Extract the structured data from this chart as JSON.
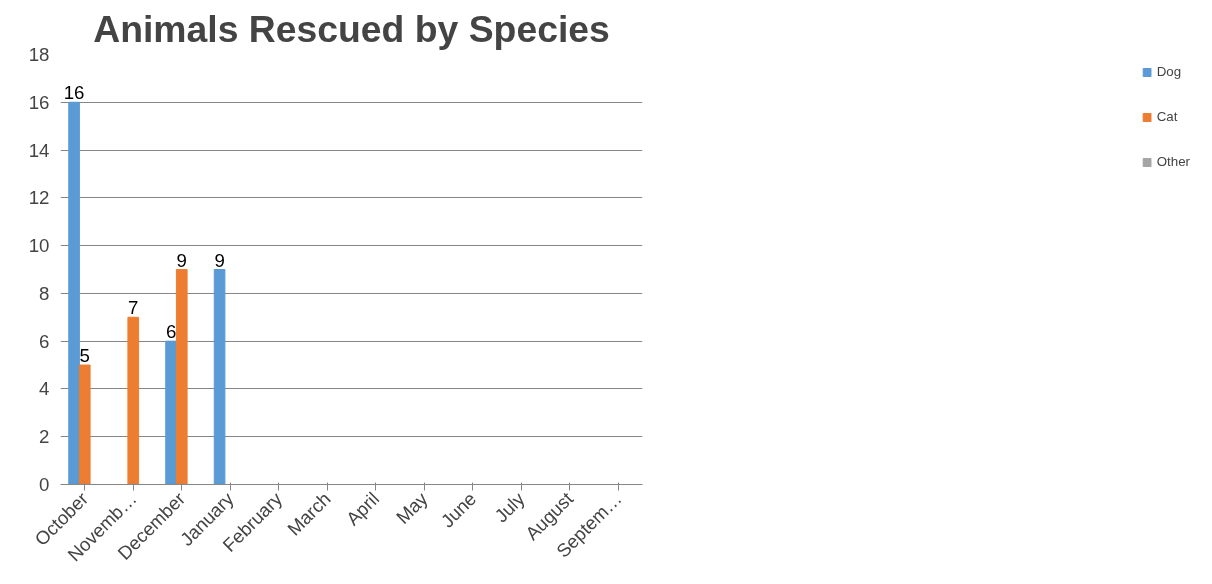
{
  "chart_data": {
    "type": "bar",
    "title": "Animals Rescued by Species",
    "categories": [
      "October",
      "Novemb…",
      "December",
      "January",
      "February",
      "March",
      "April",
      "May",
      "June",
      "July",
      "August",
      "Septem…"
    ],
    "series": [
      {
        "name": "Dog",
        "color": "#5b9bd5",
        "values": [
          16,
          null,
          6,
          9,
          null,
          null,
          null,
          null,
          null,
          null,
          null,
          null
        ]
      },
      {
        "name": "Cat",
        "color": "#ed7d31",
        "values": [
          5,
          7,
          9,
          null,
          null,
          null,
          null,
          null,
          null,
          null,
          null,
          null
        ]
      },
      {
        "name": "Other",
        "color": "#a5a5a5",
        "values": [
          null,
          null,
          null,
          null,
          null,
          null,
          null,
          null,
          null,
          null,
          null,
          null
        ]
      }
    ],
    "ylim": [
      0,
      18
    ],
    "yticks": [
      0,
      2,
      4,
      6,
      8,
      10,
      12,
      14,
      16,
      18
    ],
    "grid": "y",
    "legend": "right",
    "data_labels": true
  }
}
